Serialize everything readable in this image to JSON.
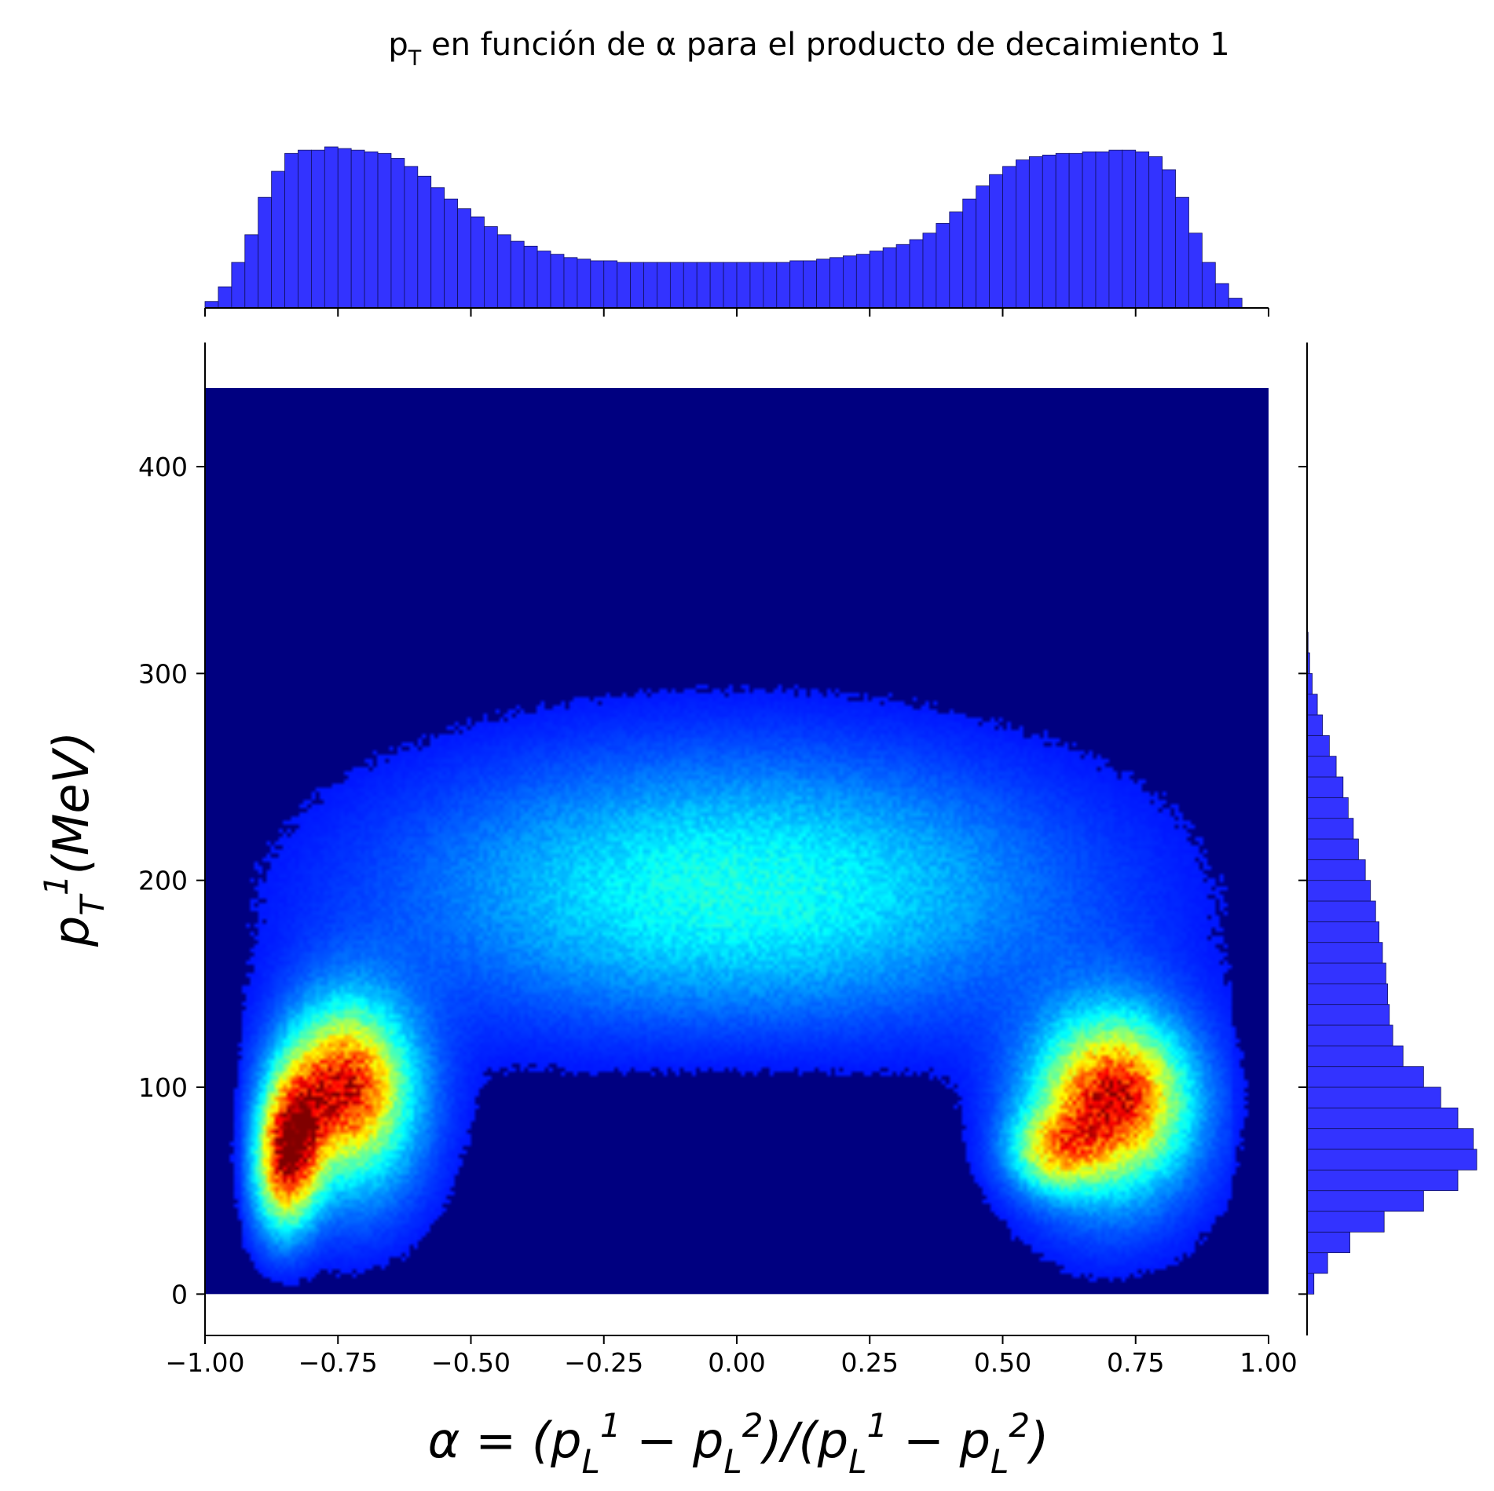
{
  "chart_data": {
    "type": "heatmap",
    "title": "p_T en función de α para el producto de decaimiento 1",
    "xlabel": "α = (p_L^1 − p_L^2)/(p_L^1 − p_L^2)",
    "ylabel": "p_T^1(MeV)",
    "xlim": [
      -1.0,
      1.0
    ],
    "ylim": [
      -20,
      460
    ],
    "x_ticks": [
      -1.0,
      -0.75,
      -0.5,
      -0.25,
      0.0,
      0.25,
      0.5,
      0.75,
      1.0
    ],
    "x_tick_labels": [
      "−1.00",
      "−0.75",
      "−0.50",
      "−0.25",
      "0.00",
      "0.25",
      "0.50",
      "0.75",
      "1.00"
    ],
    "y_ticks": [
      0,
      100,
      200,
      300,
      400
    ],
    "y_tick_labels": [
      "0",
      "100",
      "200",
      "300",
      "400"
    ],
    "grid": false,
    "colormap": "jet",
    "data_extent": {
      "x": [
        -1.0,
        1.0
      ],
      "y": [
        0,
        438
      ]
    },
    "hotspots": [
      {
        "x": -0.83,
        "y": 80,
        "relative_density": 1.0
      },
      {
        "x": -0.75,
        "y": 100,
        "relative_density": 0.7
      },
      {
        "x": 0.72,
        "y": 95,
        "relative_density": 0.75
      },
      {
        "x": 0.6,
        "y": 70,
        "relative_density": 0.55
      }
    ],
    "marginal_x": {
      "type": "bar",
      "color": "#3333ff",
      "bin_edges_start": -1.0,
      "bin_width": 0.025,
      "values": [
        0.04,
        0.13,
        0.28,
        0.45,
        0.68,
        0.84,
        0.95,
        0.97,
        0.97,
        0.99,
        0.98,
        0.97,
        0.96,
        0.95,
        0.92,
        0.87,
        0.81,
        0.74,
        0.67,
        0.61,
        0.56,
        0.5,
        0.45,
        0.41,
        0.38,
        0.35,
        0.33,
        0.31,
        0.3,
        0.29,
        0.29,
        0.28,
        0.28,
        0.28,
        0.28,
        0.28,
        0.28,
        0.28,
        0.28,
        0.28,
        0.28,
        0.28,
        0.28,
        0.28,
        0.29,
        0.29,
        0.3,
        0.31,
        0.32,
        0.33,
        0.35,
        0.37,
        0.39,
        0.42,
        0.46,
        0.52,
        0.59,
        0.67,
        0.75,
        0.82,
        0.87,
        0.91,
        0.93,
        0.94,
        0.95,
        0.95,
        0.96,
        0.96,
        0.97,
        0.97,
        0.96,
        0.93,
        0.85,
        0.68,
        0.46,
        0.28,
        0.15,
        0.06
      ]
    },
    "marginal_y": {
      "type": "barh",
      "color": "#3333ff",
      "bin_edges_start": 0,
      "bin_width": 10,
      "values": [
        0.04,
        0.12,
        0.25,
        0.45,
        0.68,
        0.88,
        0.99,
        0.97,
        0.88,
        0.78,
        0.68,
        0.56,
        0.5,
        0.48,
        0.47,
        0.46,
        0.44,
        0.42,
        0.4,
        0.37,
        0.34,
        0.3,
        0.27,
        0.24,
        0.21,
        0.17,
        0.13,
        0.09,
        0.06,
        0.03,
        0.015,
        0.006,
        0.002
      ]
    }
  }
}
